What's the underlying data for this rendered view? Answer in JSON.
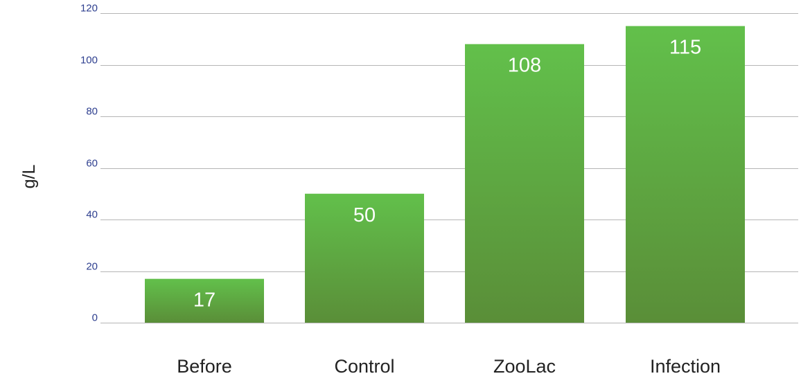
{
  "chart_data": {
    "type": "bar",
    "categories": [
      "Before",
      "Control",
      "ZooLac",
      "Infection"
    ],
    "values": [
      17,
      50,
      108,
      115
    ],
    "data_labels": [
      "17",
      "50",
      "108",
      "115"
    ],
    "ylabel": "g/L",
    "ylim": [
      0,
      120
    ],
    "yticks": [
      0,
      20,
      40,
      60,
      80,
      100,
      120
    ],
    "ytick_labels": [
      "0",
      "20",
      "40",
      "60",
      "80",
      "100",
      "120"
    ],
    "grid": true,
    "legend": "none",
    "colors": {
      "bar_top": "#62c04b",
      "bar_bottom": "#5a8e38",
      "grid": "#b5b5b5",
      "tick_text": "#2e3f8f"
    }
  }
}
